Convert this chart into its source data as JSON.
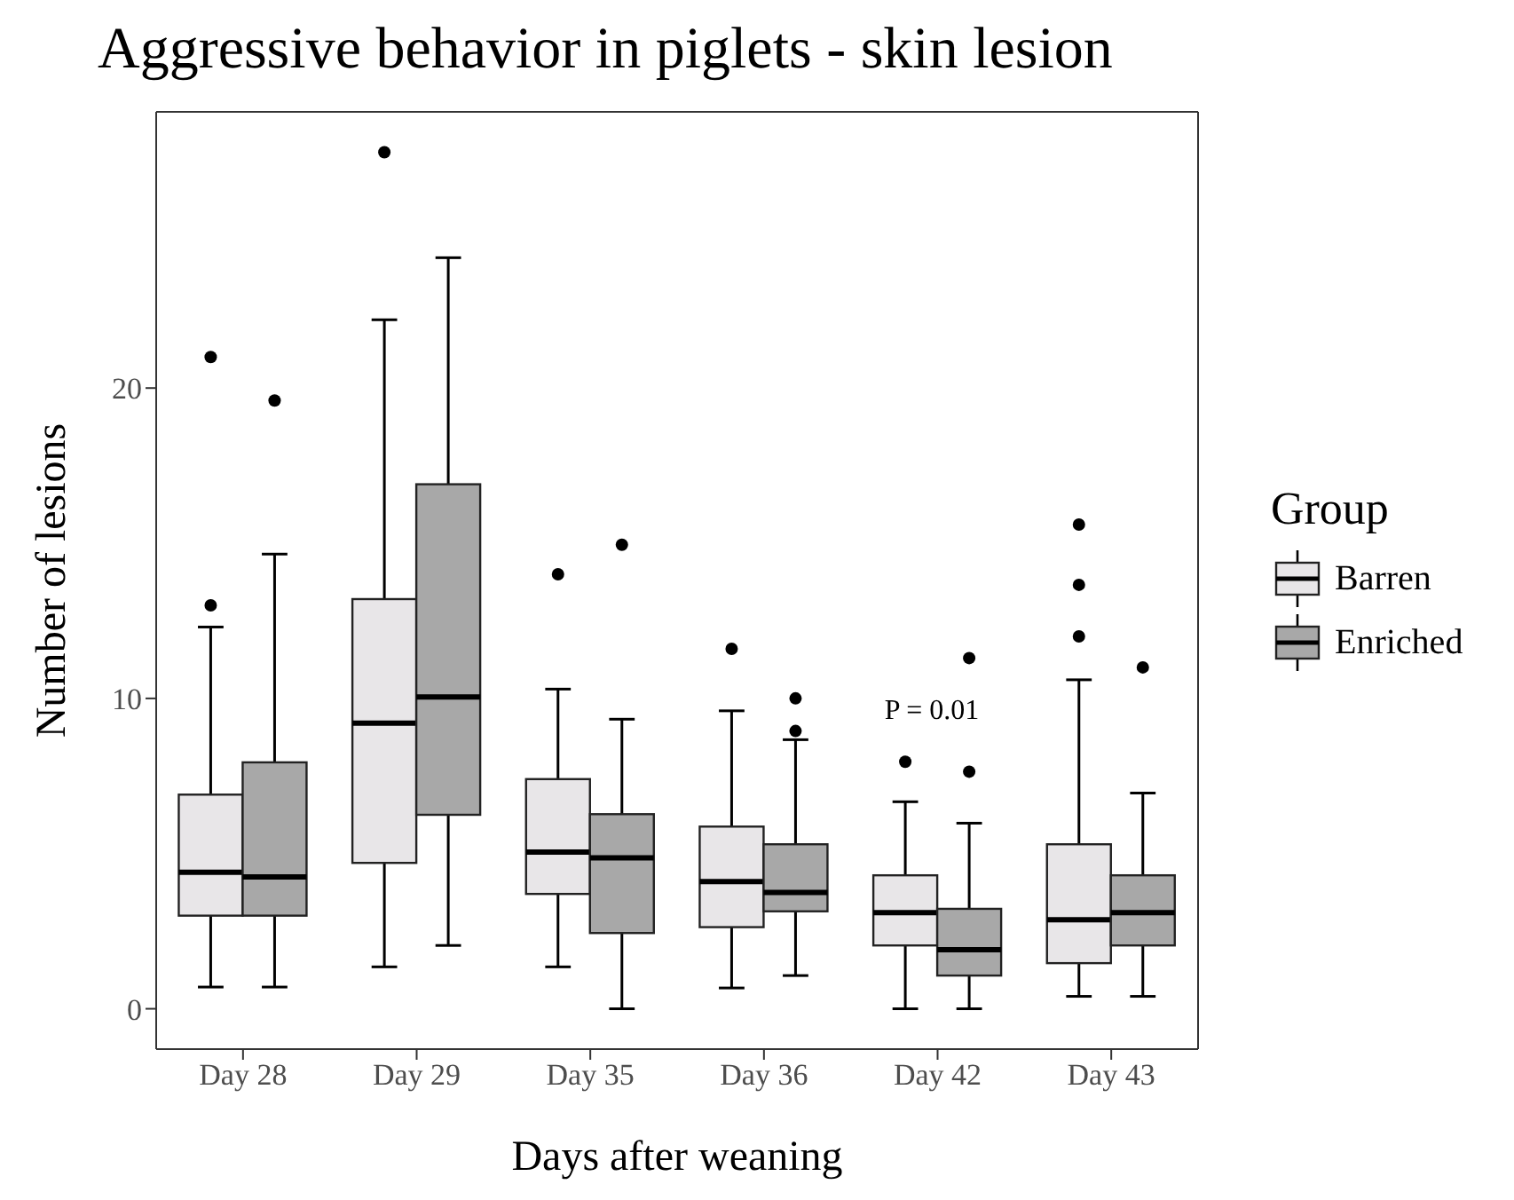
{
  "chart_data": {
    "type": "box",
    "title": "Aggressive behavior in piglets - skin lesion",
    "xlabel": "Days after weaning",
    "ylabel": "Number of lesions",
    "legend_title": "Group",
    "legend": "right",
    "grid": false,
    "categories": [
      "Day 28",
      "Day 29",
      "Day 35",
      "Day 36",
      "Day 42",
      "Day 43"
    ],
    "ylim": [
      -1.3,
      28.9
    ],
    "yticks": [
      0,
      10,
      20
    ],
    "annotations": [
      "P = 0.01"
    ],
    "series": [
      {
        "name": "Barren",
        "color": "#e8e6e8",
        "boxes": [
          {
            "low": 0.7,
            "q1": 3.0,
            "median": 4.4,
            "q3": 6.9,
            "high": 12.3,
            "outliers": [
              13.0,
              21.0
            ]
          },
          {
            "low": 1.35,
            "q1": 4.7,
            "median": 9.2,
            "q3": 13.2,
            "high": 22.2,
            "outliers": [
              27.6
            ]
          },
          {
            "low": 1.35,
            "q1": 3.7,
            "median": 5.05,
            "q3": 7.4,
            "high": 10.3,
            "outliers": [
              14.0
            ]
          },
          {
            "low": 0.67,
            "q1": 2.63,
            "median": 4.1,
            "q3": 5.87,
            "high": 9.6,
            "outliers": [
              11.6
            ]
          },
          {
            "low": 0,
            "q1": 2.04,
            "median": 3.1,
            "q3": 4.3,
            "high": 6.67,
            "outliers": [
              7.96
            ]
          },
          {
            "low": 0.4,
            "q1": 1.47,
            "median": 2.87,
            "q3": 5.3,
            "high": 10.6,
            "outliers": [
              12.0,
              13.66,
              15.6
            ]
          }
        ]
      },
      {
        "name": "Enriched",
        "color": "#a8a8a8",
        "boxes": [
          {
            "low": 0.7,
            "q1": 3.0,
            "median": 4.25,
            "q3": 7.94,
            "high": 14.65,
            "outliers": [
              19.6
            ]
          },
          {
            "low": 2.04,
            "q1": 6.25,
            "median": 10.05,
            "q3": 16.9,
            "high": 24.2
          },
          {
            "low": 0,
            "q1": 2.44,
            "median": 4.86,
            "q3": 6.27,
            "high": 9.33,
            "outliers": [
              14.95
            ]
          },
          {
            "low": 1.07,
            "q1": 3.14,
            "median": 3.75,
            "q3": 5.3,
            "high": 8.67,
            "outliers": [
              8.95,
              10.0
            ]
          },
          {
            "low": 0,
            "q1": 1.07,
            "median": 1.9,
            "q3": 3.22,
            "high": 5.98,
            "outliers": [
              7.64,
              11.3
            ]
          },
          {
            "low": 0.4,
            "q1": 2.04,
            "median": 3.1,
            "q3": 4.3,
            "high": 6.95,
            "outliers": [
              11.0
            ]
          }
        ]
      }
    ]
  }
}
